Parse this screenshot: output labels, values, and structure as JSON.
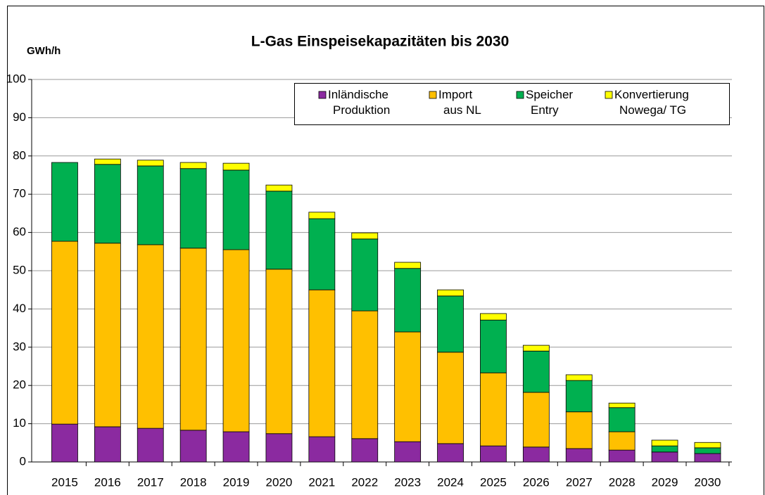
{
  "chart_data": {
    "type": "stacked_bar",
    "title": "L-Gas Einspeisekapazitäten bis 2030",
    "y_label": "GWh/h",
    "categories": [
      "2015",
      "2016",
      "2017",
      "2018",
      "2019",
      "2020",
      "2021",
      "2022",
      "2023",
      "2024",
      "2025",
      "2026",
      "2027",
      "2028",
      "2029",
      "2030"
    ],
    "series": [
      {
        "name": "Inländische Produktion",
        "color": "#8b2aa0",
        "values": [
          9.9,
          9.2,
          8.8,
          8.3,
          7.9,
          7.4,
          6.6,
          6.1,
          5.3,
          4.8,
          4.2,
          3.9,
          3.5,
          3.1,
          2.6,
          2.2
        ]
      },
      {
        "name": "Import aus NL",
        "color": "#ffc000",
        "values": [
          47.8,
          48.0,
          48.0,
          47.6,
          47.6,
          43.0,
          38.4,
          33.4,
          28.7,
          23.9,
          19.1,
          14.3,
          9.6,
          4.8,
          0,
          0
        ]
      },
      {
        "name": "Speicher Entry",
        "color": "#00b050",
        "values": [
          20.6,
          20.6,
          20.6,
          20.8,
          20.8,
          20.4,
          18.6,
          18.8,
          16.6,
          14.7,
          13.8,
          10.8,
          8.2,
          6.3,
          1.6,
          1.5
        ]
      },
      {
        "name": "Konvertierung Nowega/ TG",
        "color": "#ffff00",
        "values": [
          0,
          1.4,
          1.5,
          1.6,
          1.8,
          1.6,
          1.7,
          1.6,
          1.6,
          1.6,
          1.7,
          1.5,
          1.5,
          1.2,
          1.5,
          1.4
        ]
      }
    ],
    "ylim": [
      0,
      100
    ],
    "yticks": [
      0,
      10,
      20,
      30,
      40,
      50,
      60,
      70,
      80,
      90,
      100
    ],
    "grid": true,
    "legend": "top-right"
  }
}
